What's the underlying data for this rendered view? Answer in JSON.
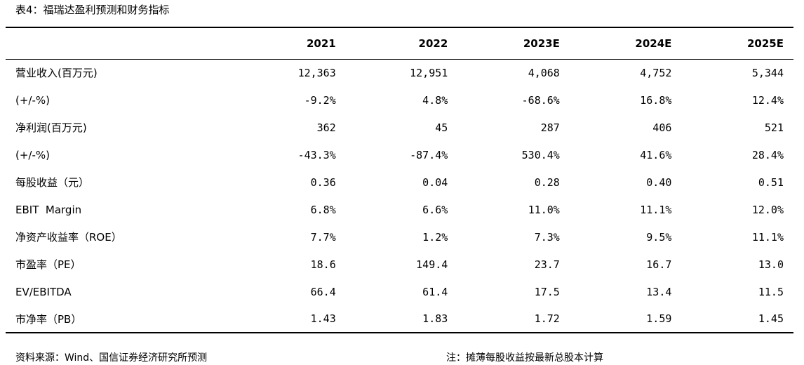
{
  "caption": "表4：福瑞达盈利预测和财务指标",
  "table": {
    "headers": [
      "",
      "2021",
      "2022",
      "2023E",
      "2024E",
      "2025E"
    ],
    "rows": [
      {
        "label": "营业收入(百万元)",
        "values": [
          "12,363",
          "12,951",
          "4,068",
          "4,752",
          "5,344"
        ]
      },
      {
        "label": "(+/-%)",
        "values": [
          "-9.2%",
          "4.8%",
          "-68.6%",
          "16.8%",
          "12.4%"
        ]
      },
      {
        "label": "净利润(百万元)",
        "values": [
          "362",
          "45",
          "287",
          "406",
          "521"
        ]
      },
      {
        "label": "(+/-%)",
        "values": [
          "-43.3%",
          "-87.4%",
          "530.4%",
          "41.6%",
          "28.4%"
        ]
      },
      {
        "label": "每股收益（元）",
        "values": [
          "0.36",
          "0.04",
          "0.28",
          "0.40",
          "0.51"
        ]
      },
      {
        "label": "EBIT  Margin",
        "values": [
          "6.8%",
          "6.6%",
          "11.0%",
          "11.1%",
          "12.0%"
        ]
      },
      {
        "label": "净资产收益率（ROE）",
        "values": [
          "7.7%",
          "1.2%",
          "7.3%",
          "9.5%",
          "11.1%"
        ]
      },
      {
        "label": "市盈率（PE）",
        "values": [
          "18.6",
          "149.4",
          "23.7",
          "16.7",
          "13.0"
        ]
      },
      {
        "label": "EV/EBITDA",
        "values": [
          "66.4",
          "61.4",
          "17.5",
          "13.4",
          "11.5"
        ]
      },
      {
        "label": "市净率（PB）",
        "values": [
          "1.43",
          "1.83",
          "1.72",
          "1.59",
          "1.45"
        ]
      }
    ]
  },
  "footer": {
    "source": "资料来源：Wind、国信证券经济研究所预测",
    "note": "注：摊薄每股收益按最新总股本计算"
  }
}
